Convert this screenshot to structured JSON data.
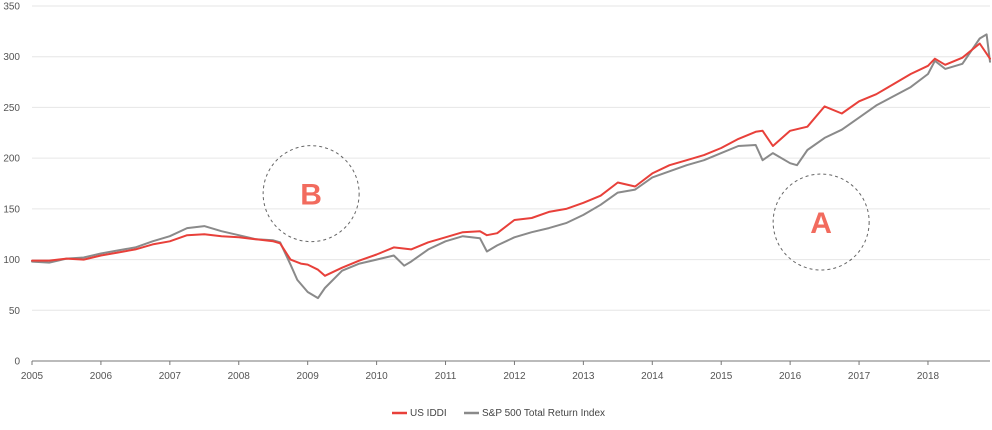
{
  "chart_data": {
    "type": "line",
    "title": "",
    "xlabel": "",
    "ylabel": "",
    "xlim": [
      2005.0,
      2018.9
    ],
    "ylim": [
      0,
      350
    ],
    "x_ticks": [
      "2005",
      "2006",
      "2007",
      "2008",
      "2009",
      "2010",
      "2011",
      "2012",
      "2013",
      "2014",
      "2015",
      "2016",
      "2017",
      "2018"
    ],
    "y_ticks": [
      0,
      50,
      100,
      150,
      200,
      250,
      300,
      350
    ],
    "grid": "horizontal",
    "legend_placement": "bottom-center",
    "series": [
      {
        "name": "US IDDI",
        "color": "#e8403a",
        "x": [
          2005.0,
          2005.25,
          2005.5,
          2005.75,
          2006.0,
          2006.25,
          2006.5,
          2006.75,
          2007.0,
          2007.25,
          2007.5,
          2007.75,
          2008.0,
          2008.25,
          2008.5,
          2008.6,
          2008.75,
          2008.9,
          2009.0,
          2009.15,
          2009.25,
          2009.5,
          2009.75,
          2010.0,
          2010.25,
          2010.5,
          2010.75,
          2011.0,
          2011.25,
          2011.5,
          2011.6,
          2011.75,
          2012.0,
          2012.25,
          2012.5,
          2012.75,
          2013.0,
          2013.25,
          2013.5,
          2013.75,
          2014.0,
          2014.25,
          2014.5,
          2014.75,
          2015.0,
          2015.25,
          2015.5,
          2015.6,
          2015.75,
          2016.0,
          2016.25,
          2016.5,
          2016.75,
          2017.0,
          2017.25,
          2017.5,
          2017.75,
          2018.0,
          2018.1,
          2018.25,
          2018.5,
          2018.75,
          2018.9
        ],
        "values": [
          99,
          99,
          101,
          100,
          104,
          107,
          110,
          115,
          118,
          124,
          125,
          123,
          122,
          120,
          118,
          116,
          100,
          96,
          95,
          90,
          84,
          92,
          99,
          105,
          112,
          110,
          117,
          122,
          127,
          128,
          124,
          126,
          139,
          141,
          147,
          150,
          156,
          163,
          176,
          172,
          185,
          193,
          198,
          203,
          210,
          219,
          226,
          227,
          212,
          227,
          231,
          251,
          244,
          256,
          263,
          273,
          283,
          291,
          298,
          292,
          299,
          313,
          298
        ]
      },
      {
        "name": "S&P 500 Total Return Index",
        "color": "#8a8a8a",
        "x": [
          2005.0,
          2005.25,
          2005.5,
          2005.75,
          2006.0,
          2006.25,
          2006.5,
          2006.75,
          2007.0,
          2007.25,
          2007.5,
          2007.75,
          2008.0,
          2008.25,
          2008.5,
          2008.6,
          2008.75,
          2008.85,
          2009.0,
          2009.15,
          2009.25,
          2009.5,
          2009.75,
          2010.0,
          2010.25,
          2010.4,
          2010.5,
          2010.75,
          2011.0,
          2011.25,
          2011.5,
          2011.6,
          2011.75,
          2012.0,
          2012.25,
          2012.5,
          2012.75,
          2013.0,
          2013.25,
          2013.5,
          2013.75,
          2014.0,
          2014.25,
          2014.5,
          2014.75,
          2015.0,
          2015.25,
          2015.5,
          2015.6,
          2015.75,
          2016.0,
          2016.1,
          2016.25,
          2016.5,
          2016.75,
          2017.0,
          2017.25,
          2017.5,
          2017.75,
          2018.0,
          2018.1,
          2018.25,
          2018.5,
          2018.75,
          2018.85,
          2018.9
        ],
        "values": [
          98,
          97,
          101,
          102,
          106,
          109,
          112,
          118,
          123,
          131,
          133,
          128,
          124,
          120,
          119,
          117,
          95,
          80,
          68,
          62,
          72,
          89,
          96,
          100,
          104,
          94,
          98,
          110,
          118,
          123,
          121,
          108,
          114,
          122,
          127,
          131,
          136,
          144,
          154,
          166,
          169,
          181,
          187,
          193,
          198,
          205,
          212,
          213,
          198,
          205,
          195,
          193,
          208,
          220,
          228,
          240,
          252,
          261,
          270,
          283,
          296,
          288,
          293,
          318,
          322,
          295
        ]
      }
    ],
    "annotations": [
      {
        "label": "B",
        "x": 2009.05,
        "y": 165
      },
      {
        "label": "A",
        "x": 2016.45,
        "y": 137
      }
    ]
  },
  "annotation_color": "#f26b5e",
  "annotation_circle_color": "#666666",
  "axis_color": "#777777"
}
